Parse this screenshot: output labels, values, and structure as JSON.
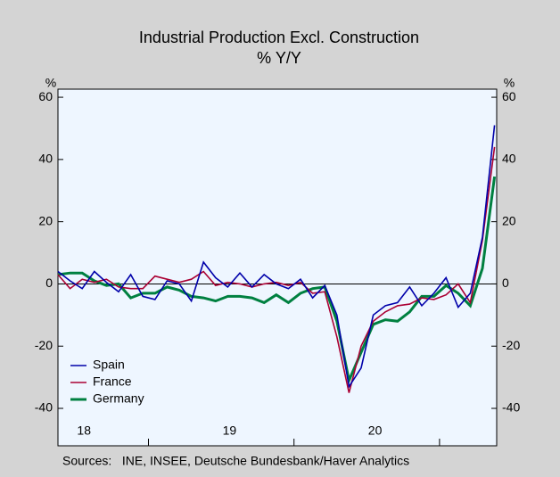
{
  "chart_data": {
    "type": "line",
    "title": "Industrial Production Excl. Construction",
    "subtitle": "% Y/Y",
    "y_unit": "%",
    "y2_unit": "%",
    "source": "Sources:   INE, INSEE, Deutsche Bundesbank/Haver Analytics",
    "categories": [
      null,
      null,
      "18",
      null,
      null,
      null,
      null,
      null,
      null,
      null,
      null,
      null,
      null,
      null,
      "19",
      null,
      null,
      null,
      null,
      null,
      null,
      null,
      null,
      null,
      null,
      null,
      "20",
      null,
      null,
      null,
      null,
      null,
      null,
      null,
      null,
      null,
      null
    ],
    "series": [
      {
        "name": "Spain",
        "color": "#0000aa",
        "values": [
          4,
          1,
          -1.5,
          4,
          0.5,
          -2.5,
          3,
          -4,
          -5,
          1,
          0,
          -5.5,
          7,
          2,
          -1,
          3.5,
          -1,
          3,
          0,
          -1.5,
          1.5,
          -4.5,
          -0.5,
          -10,
          -33,
          -27,
          -10,
          -7,
          -6,
          -1,
          -7,
          -3,
          2,
          -7.5,
          -3,
          15,
          51
        ]
      },
      {
        "name": "France",
        "color": "#aa0033",
        "values": [
          3,
          -1.5,
          1.5,
          0.5,
          1.5,
          -1,
          -1.5,
          -1.5,
          2.5,
          1.5,
          0.5,
          1.5,
          4,
          -0.5,
          0.5,
          0,
          -1,
          0,
          0.5,
          -0.5,
          0.5,
          -3,
          -2.5,
          -17,
          -35,
          -20,
          -12,
          -9,
          -7,
          -6.5,
          -4.5,
          -5,
          -3.5,
          0,
          -6,
          14,
          44
        ]
      },
      {
        "name": "Germany",
        "color": "#008040",
        "values": [
          3,
          3.5,
          3.5,
          1,
          -0.5,
          0,
          -4.5,
          -3,
          -3,
          -1,
          -2,
          -4,
          -4.5,
          -5.5,
          -4,
          -4,
          -4.5,
          -6,
          -3.5,
          -6,
          -3,
          -1.5,
          -1,
          -12,
          -31,
          -22,
          -13,
          -11.5,
          -12,
          -9,
          -4,
          -4,
          -0.5,
          -3,
          -7,
          5,
          34.5
        ]
      }
    ],
    "ylim": [
      -42,
      62.6
    ],
    "yticks": [
      -40,
      -20,
      0,
      20,
      40,
      60
    ],
    "y2lim": [
      -42,
      62.6
    ],
    "y2ticks": [
      -40,
      -20,
      0,
      20,
      40,
      60
    ],
    "zero_line": true,
    "legend": "lower left"
  }
}
